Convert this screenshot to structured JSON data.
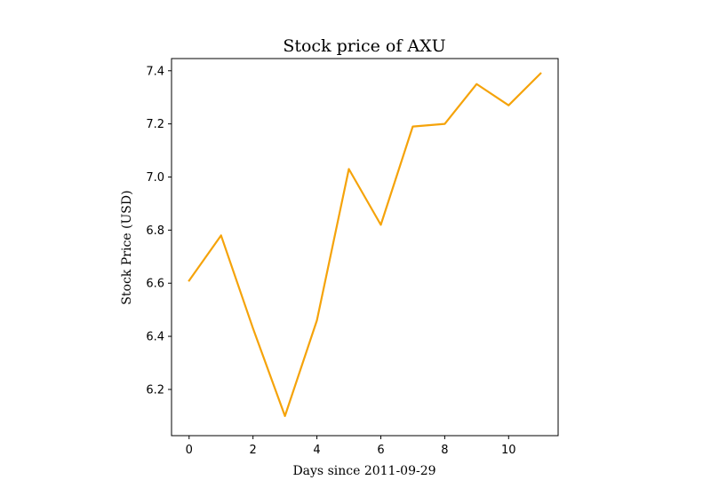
{
  "chart_data": {
    "type": "line",
    "title": "Stock price of AXU",
    "xlabel": "Days since 2011-09-29",
    "ylabel": "Stock Price (USD)",
    "x": [
      0,
      1,
      2,
      3,
      4,
      5,
      6,
      7,
      8,
      9,
      10,
      11
    ],
    "series": [
      {
        "color": "#f5a30a",
        "values": [
          6.61,
          6.78,
          6.43,
          6.1,
          6.46,
          7.03,
          6.82,
          7.19,
          7.2,
          7.35,
          7.27,
          7.39
        ]
      }
    ],
    "xlim": [
      -0.55,
      11.55
    ],
    "ylim": [
      6.026,
      7.446
    ],
    "xticks": [
      0,
      2,
      4,
      6,
      8,
      10
    ],
    "xtick_labels": [
      "0",
      "2",
      "4",
      "6",
      "8",
      "10"
    ],
    "yticks": [
      6.2,
      6.4,
      6.6,
      6.8,
      7.0,
      7.2,
      7.4
    ],
    "ytick_labels": [
      "6.2",
      "6.4",
      "6.6",
      "6.8",
      "7.0",
      "7.2",
      "7.4"
    ],
    "grid": false,
    "legend": "none"
  }
}
